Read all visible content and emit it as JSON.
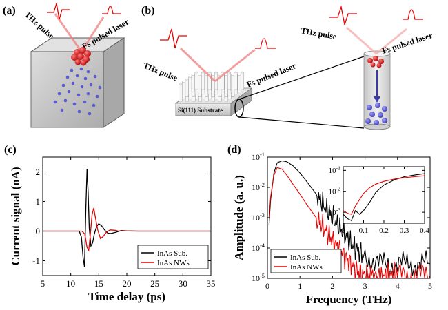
{
  "panels": {
    "a": {
      "label": "(a)",
      "thz_label": "THz pulse",
      "laser_label": "Fs pulsed laser"
    },
    "b": {
      "label": "(b)",
      "thz_label_left": "THz pulse",
      "laser_label_left": "Fs pulsed laser",
      "thz_label_right": "THz pulse",
      "laser_label_right": "Fs pulsed laser",
      "substrate_label": "Si(111) Substrate"
    },
    "c": {
      "label": "(c)"
    },
    "d": {
      "label": "(d)"
    }
  },
  "colors": {
    "red": "#e60000",
    "blue": "#5a5ad2",
    "black": "#000000",
    "box": "#bfbfbf"
  },
  "chart_data": [
    {
      "type": "line",
      "panel": "c",
      "xlabel": "Time delay (ps)",
      "ylabel": "Current signal (nA)",
      "xlim": [
        5,
        35
      ],
      "ylim": [
        -1.5,
        2.5
      ],
      "xticks": [
        5,
        10,
        15,
        20,
        25,
        30,
        35
      ],
      "yticks": [
        -1,
        0,
        1,
        2
      ],
      "legend_position": "bottom-right",
      "series": [
        {
          "name": "InAs Sub.",
          "color": "#000000",
          "x": [
            5,
            11.5,
            11.9,
            12.2,
            12.45,
            12.7,
            12.9,
            13.1,
            13.3,
            13.6,
            13.9,
            14.2,
            14.6,
            15.0,
            15.5,
            16.0,
            16.6,
            17.2,
            18.0,
            19.0,
            20.0,
            22,
            35
          ],
          "y": [
            0,
            0,
            -0.2,
            -0.9,
            -1.2,
            0.8,
            2.1,
            1.3,
            0.1,
            -0.5,
            -0.4,
            -0.1,
            0.15,
            0.25,
            0.18,
            0.05,
            -0.07,
            -0.08,
            -0.04,
            0.02,
            0.01,
            0,
            0
          ]
        },
        {
          "name": "InAs NWs",
          "color": "#e60000",
          "x": [
            5,
            12.0,
            12.5,
            12.9,
            13.2,
            13.5,
            13.8,
            14.1,
            14.4,
            14.8,
            15.3,
            15.8,
            16.3,
            17.0,
            17.8,
            18.5,
            19.5,
            21,
            35
          ],
          "y": [
            0,
            0,
            -0.1,
            -0.55,
            -0.65,
            -0.1,
            0.55,
            0.78,
            0.45,
            0.05,
            -0.25,
            -0.18,
            -0.05,
            0.04,
            0.03,
            0,
            0.01,
            0,
            0
          ]
        }
      ]
    },
    {
      "type": "line",
      "panel": "d",
      "xlabel": "Frequency (THz)",
      "ylabel": "Amplitude (a. u.)",
      "yscale": "log",
      "xlim": [
        0,
        5
      ],
      "ylim": [
        1e-05,
        0.1
      ],
      "xticks": [
        0,
        1,
        2,
        3,
        4,
        5
      ],
      "yticks": [
        "10^-5",
        "10^-4",
        "10^-3",
        "10^-2",
        "10^-1"
      ],
      "legend_position": "bottom-left",
      "series": [
        {
          "name": "InAs Sub.",
          "color": "#000000",
          "x": [
            0.05,
            0.1,
            0.2,
            0.3,
            0.45,
            0.6,
            0.8,
            1.0,
            1.2,
            1.5,
            1.8,
            2.1,
            2.4,
            2.7,
            3.0,
            3.5,
            4.0,
            4.5,
            5.0
          ],
          "y": [
            0.0006,
            0.004,
            0.03,
            0.065,
            0.075,
            0.07,
            0.05,
            0.03,
            0.016,
            0.006,
            0.002,
            0.0007,
            0.00025,
            0.0001,
            5e-05,
            3e-05,
            3e-05,
            3e-05,
            3e-05
          ]
        },
        {
          "name": "InAs NWs",
          "color": "#e60000",
          "x": [
            0.05,
            0.1,
            0.2,
            0.3,
            0.45,
            0.6,
            0.8,
            1.0,
            1.2,
            1.5,
            1.8,
            2.1,
            2.4,
            2.7,
            2.9,
            3.2,
            3.6,
            4.0,
            4.5,
            5.0
          ],
          "y": [
            0.001,
            0.005,
            0.025,
            0.045,
            0.04,
            0.025,
            0.012,
            0.006,
            0.0028,
            0.001,
            0.00035,
            0.00013,
            5e-05,
            2e-05,
            1.3e-05,
            1.3e-05,
            1.3e-05,
            1.3e-05,
            1.3e-05,
            1.3e-05
          ]
        }
      ]
    },
    {
      "type": "line",
      "panel": "d-inset",
      "yscale": "log",
      "xlim": [
        0,
        0.4
      ],
      "ylim": [
        0.0003,
        0.15
      ],
      "xticks": [
        0.0,
        0.1,
        0.2,
        0.3,
        0.4
      ],
      "yticks": [
        "10^-3",
        "10^-2",
        "10^-1"
      ],
      "series": [
        {
          "name": "InAs Sub.",
          "color": "#000000",
          "x": [
            0.0,
            0.02,
            0.04,
            0.06,
            0.08,
            0.1,
            0.13,
            0.16,
            0.2,
            0.25,
            0.3,
            0.35,
            0.4
          ],
          "y": [
            0.0008,
            0.0005,
            0.0004,
            0.0012,
            0.0008,
            0.0012,
            0.003,
            0.009,
            0.02,
            0.035,
            0.05,
            0.06,
            0.07
          ]
        },
        {
          "name": "InAs NWs",
          "color": "#e60000",
          "x": [
            0.0,
            0.02,
            0.04,
            0.06,
            0.08,
            0.1,
            0.13,
            0.16,
            0.2,
            0.25,
            0.3,
            0.35,
            0.4
          ],
          "y": [
            0.0012,
            0.0009,
            0.0008,
            0.002,
            0.004,
            0.008,
            0.015,
            0.022,
            0.03,
            0.038,
            0.045,
            0.05,
            0.055
          ]
        }
      ]
    }
  ]
}
